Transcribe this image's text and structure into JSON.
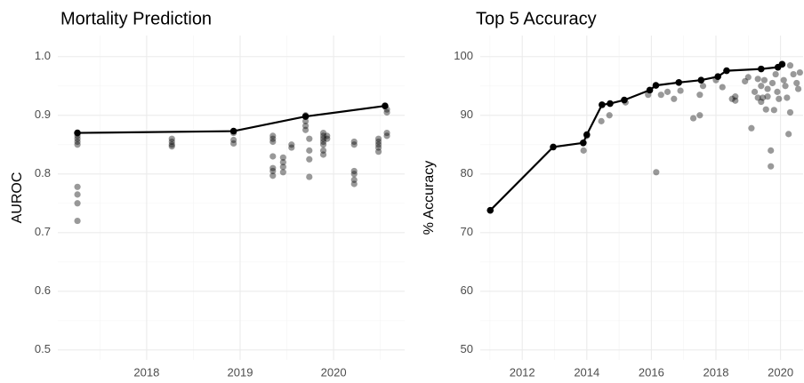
{
  "chart_data": [
    {
      "type": "scatter",
      "title": "Mortality Prediction",
      "ylabel": "AUROC",
      "xlim": [
        2017.05,
        2020.76
      ],
      "ylim": [
        0.483,
        1.036
      ],
      "xticks": [
        2018,
        2019,
        2020
      ],
      "yticks": [
        0.5,
        0.6,
        0.7,
        0.8,
        0.9,
        {
          "value": 1,
          "label": "1.0"
        }
      ],
      "grid": true,
      "series": [
        {
          "mode": "points",
          "color": "#000000",
          "opacity": 0.4,
          "x": [
            2017.26,
            2017.26,
            2017.26,
            2017.26,
            2017.26,
            2017.26,
            2017.26,
            2017.26,
            2018.27,
            2018.27,
            2018.27,
            2018.27,
            2018.93,
            2018.93,
            2018.93,
            2019.35,
            2019.35,
            2019.35,
            2019.35,
            2019.35,
            2019.35,
            2019.35,
            2019.46,
            2019.46,
            2019.46,
            2019.46,
            2019.55,
            2019.55,
            2019.7,
            2019.7,
            2019.7,
            2019.7,
            2019.74,
            2019.74,
            2019.74,
            2019.74,
            2019.89,
            2019.89,
            2019.89,
            2019.89,
            2019.89,
            2019.89,
            2019.89,
            2019.93,
            2019.93,
            2020.22,
            2020.22,
            2020.22,
            2020.22,
            2020.22,
            2020.22,
            2020.48,
            2020.48,
            2020.48,
            2020.48,
            2020.48,
            2020.57,
            2020.57,
            2020.57,
            2020.57
          ],
          "values": [
            0.865,
            0.86,
            0.855,
            0.85,
            0.778,
            0.765,
            0.75,
            0.72,
            0.86,
            0.855,
            0.85,
            0.847,
            0.87,
            0.858,
            0.852,
            0.865,
            0.86,
            0.855,
            0.83,
            0.81,
            0.805,
            0.797,
            0.828,
            0.82,
            0.812,
            0.803,
            0.85,
            0.845,
            0.9,
            0.89,
            0.882,
            0.875,
            0.86,
            0.84,
            0.825,
            0.795,
            0.87,
            0.865,
            0.86,
            0.855,
            0.85,
            0.84,
            0.833,
            0.865,
            0.86,
            0.855,
            0.85,
            0.805,
            0.8,
            0.79,
            0.783,
            0.86,
            0.855,
            0.85,
            0.845,
            0.838,
            0.91,
            0.905,
            0.87,
            0.865
          ]
        },
        {
          "mode": "line",
          "color": "#000000",
          "opacity": 1,
          "x": [
            2017.26,
            2018.93,
            2019.7,
            2020.55
          ],
          "values": [
            0.87,
            0.873,
            0.898,
            0.916
          ]
        }
      ]
    },
    {
      "type": "scatter",
      "title": "Top 5 Accuracy",
      "ylabel": "% Accuracy",
      "xlim": [
        2010.7,
        2020.7
      ],
      "ylim": [
        48.3,
        103.6
      ],
      "xticks": [
        2012,
        2014,
        2016,
        2018,
        2020
      ],
      "yticks": [
        50,
        60,
        70,
        80,
        90,
        100
      ],
      "grid": true,
      "series": [
        {
          "mode": "points",
          "color": "#000000",
          "opacity": 0.4,
          "x": [
            2013.9,
            2014,
            2014.45,
            2014.7,
            2015.2,
            2015.9,
            2016.15,
            2016.3,
            2016.5,
            2016.7,
            2016.9,
            2017.3,
            2017.5,
            2017.5,
            2017.6,
            2018.0,
            2018.2,
            2018.5,
            2018.6,
            2018.6,
            2018.9,
            2019.0,
            2019.1,
            2019.2,
            2019.3,
            2019.4,
            2019.45,
            2019.5,
            2019.55,
            2019.6,
            2019.7,
            2019.7,
            2019.75,
            2019.8,
            2019.85,
            2019.9,
            2019.95,
            2020.1,
            2020.15,
            2020.2,
            2020.25,
            2020.3,
            2020.4,
            2020.5,
            2020.55,
            2020.3,
            2020.6,
            2019.3,
            2019.4,
            2019.6
          ],
          "values": [
            84,
            86.5,
            89,
            90,
            92.2,
            93.5,
            80.3,
            93.5,
            94,
            92.8,
            94.2,
            89.5,
            90,
            93.5,
            95,
            96,
            94.8,
            92.8,
            92.5,
            93.2,
            95.8,
            96.5,
            87.8,
            94,
            96.2,
            95,
            93,
            96,
            91,
            94.5,
            84,
            81.3,
            95.5,
            90.9,
            97,
            94,
            92.8,
            96,
            95,
            93,
            86.8,
            90.5,
            97,
            95.5,
            94.5,
            98.5,
            97.3,
            93,
            92.3,
            93.2
          ]
        },
        {
          "mode": "line",
          "color": "#000000",
          "opacity": 1,
          "x": [
            2011.01,
            2012.96,
            2013.89,
            2014.0,
            2014.47,
            2014.72,
            2015.16,
            2015.95,
            2016.14,
            2016.85,
            2017.54,
            2018.06,
            2018.33,
            2019.4,
            2019.92,
            2020.05
          ],
          "values": [
            73.8,
            84.6,
            85.3,
            86.7,
            91.8,
            92,
            92.6,
            94.3,
            95.1,
            95.6,
            96,
            96.6,
            97.6,
            97.9,
            98.2,
            98.7
          ]
        }
      ]
    }
  ]
}
